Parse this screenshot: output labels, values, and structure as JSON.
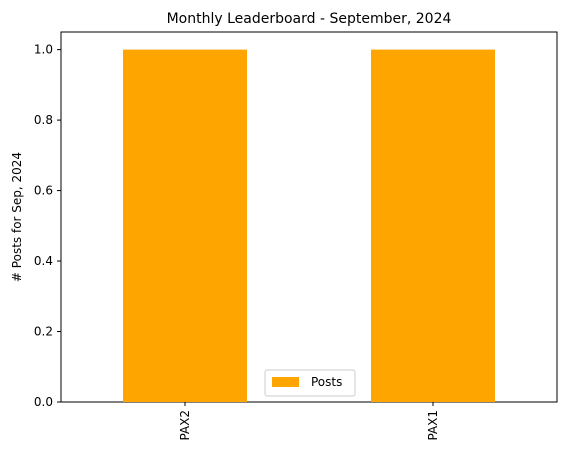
{
  "chart_data": {
    "type": "bar",
    "title": "Monthly Leaderboard - September, 2024",
    "xlabel": "",
    "ylabel": "# Posts for Sep, 2024",
    "categories": [
      "PAX2",
      "PAX1"
    ],
    "series": [
      {
        "name": "Posts",
        "values": [
          1,
          1
        ],
        "color": "#FFA500"
      }
    ],
    "ylim": [
      0,
      1.05
    ],
    "yticks": [
      0.0,
      0.2,
      0.4,
      0.6,
      0.8,
      1.0
    ],
    "ytick_labels": [
      "0.0",
      "0.2",
      "0.4",
      "0.6",
      "0.8",
      "1.0"
    ],
    "grid": false,
    "legend_position": "bottom-center"
  }
}
